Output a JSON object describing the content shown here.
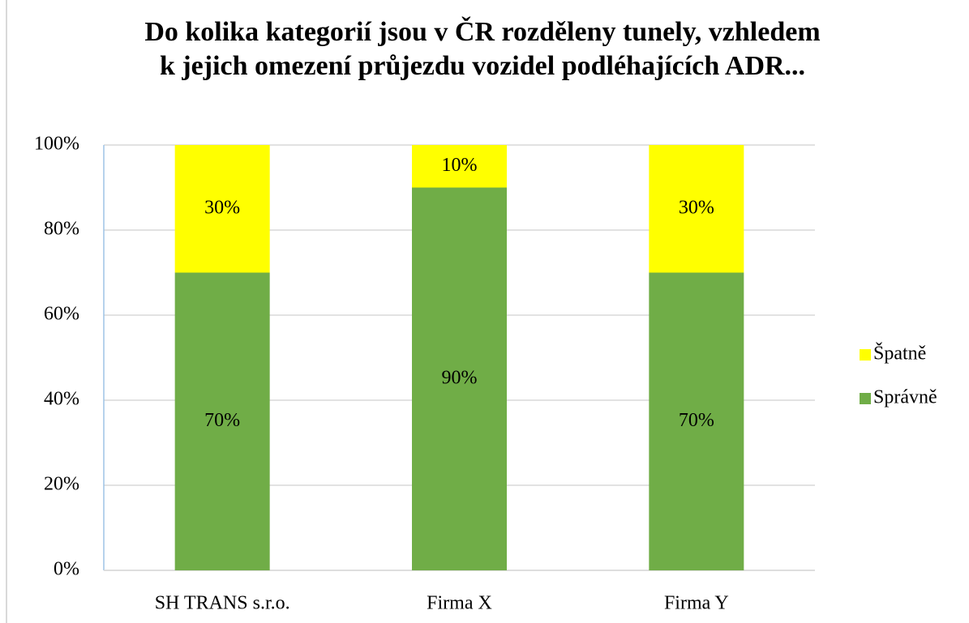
{
  "chart_data": {
    "type": "stacked_bar",
    "title": [
      "Do kolika kategorií jsou v ČR rozděleny tunely, vzhledem",
      "k jejich omezení průjezdu vozidel podléhajících ADR..."
    ],
    "categories": [
      "SH TRANS s.r.o.",
      "Firma X",
      "Firma Y"
    ],
    "series": [
      {
        "name": "Správně",
        "color": "#70ad47",
        "values": [
          70,
          90,
          70
        ],
        "value_labels": [
          "70%",
          "90%",
          "70%"
        ]
      },
      {
        "name": "Špatně",
        "color": "#ffff00",
        "values": [
          30,
          10,
          30
        ],
        "value_labels": [
          "30%",
          "10%",
          "30%"
        ]
      }
    ],
    "ylim": [
      0,
      100
    ],
    "yticks": [
      {
        "value": 0,
        "label": "0%"
      },
      {
        "value": 20,
        "label": "20%"
      },
      {
        "value": 40,
        "label": "40%"
      },
      {
        "value": 60,
        "label": "60%"
      },
      {
        "value": 80,
        "label": "80%"
      },
      {
        "value": 100,
        "label": "100%"
      }
    ],
    "grid": true,
    "legend": "right"
  }
}
